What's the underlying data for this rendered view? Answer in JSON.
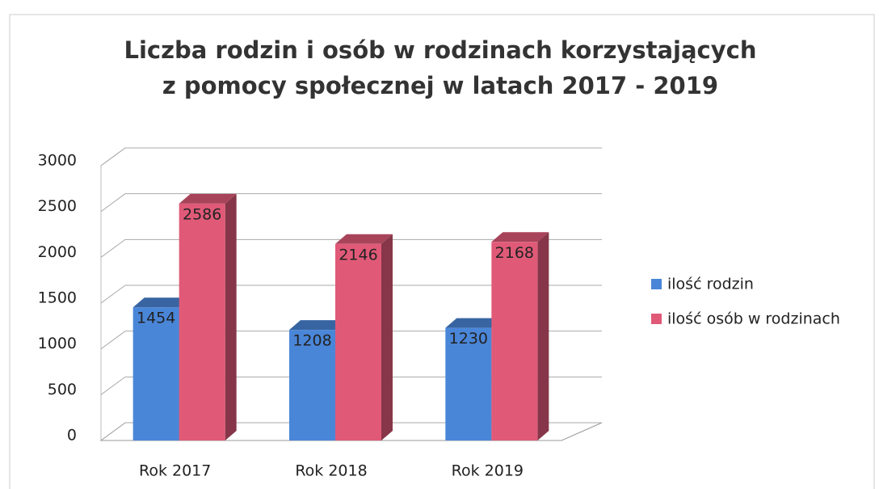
{
  "chart_data": {
    "type": "bar3d",
    "title": "Liczba rodzin i osób w rodzinach korzystających z pomocy społecznej w latach 2017 - 2019",
    "categories": [
      "Rok 2017",
      "Rok 2018",
      "Rok 2019"
    ],
    "series": [
      {
        "name": "ilość rodzin",
        "color": "#4a86d8",
        "values": [
          1454,
          1208,
          1230
        ]
      },
      {
        "name": "ilość osób w rodzinach",
        "color": "#e05a78",
        "values": [
          2586,
          2146,
          2168
        ]
      }
    ],
    "ylim": [
      0,
      3000
    ],
    "yticks": [
      0,
      500,
      1000,
      1500,
      2000,
      2500,
      3000
    ],
    "grid": true,
    "legend": "right",
    "data_labels": true
  }
}
